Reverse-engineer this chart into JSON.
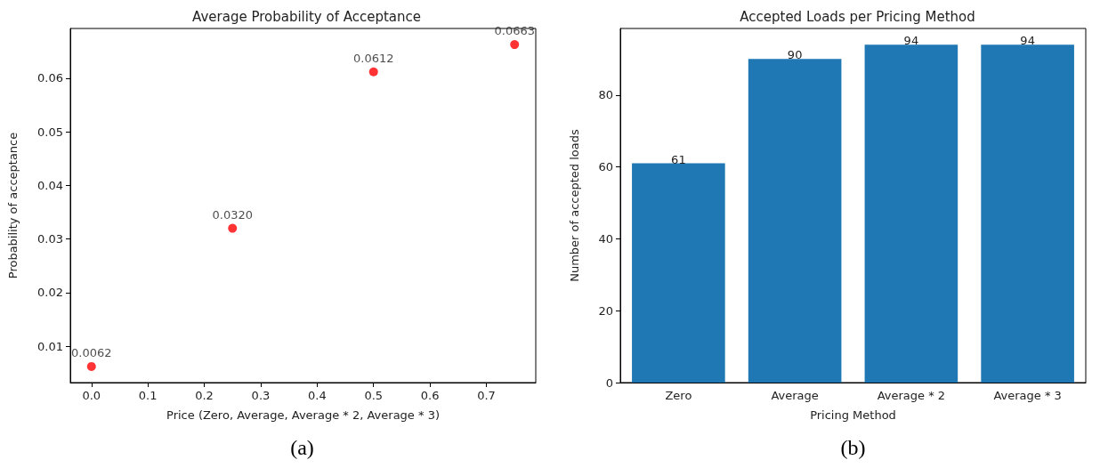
{
  "chart_data": [
    {
      "type": "scatter",
      "title": "Average Probability of Acceptance",
      "xlabel": "Price (Zero, Average, Average * 2, Average * 3)",
      "ylabel": "Probability of acceptance",
      "x": [
        0,
        0.25,
        0.5,
        0.75
      ],
      "values": [
        0.0062,
        0.032,
        0.0612,
        0.0663
      ],
      "value_labels": [
        "0.0062",
        "0.0320",
        "0.0612",
        "0.0663"
      ],
      "color": "#ff0000",
      "marker": "circle",
      "xlim": [
        -0.0375,
        0.7875
      ],
      "xticks": [
        {
          "value": 0,
          "label": "0.0"
        },
        0.1,
        0.2,
        0.3,
        0.4,
        0.5,
        0.6,
        0.7
      ],
      "ylim": [
        0.0032,
        0.0693
      ],
      "yticks": [
        0.01,
        0.02,
        0.03,
        0.04,
        0.05,
        0.06
      ],
      "annotations": [
        "(a)"
      ]
    },
    {
      "type": "bar",
      "title": "Accepted Loads per Pricing Method",
      "xlabel": "Pricing Method",
      "ylabel": "Number of accepted loads",
      "categories": [
        "Zero",
        "Average",
        "Average * 2",
        "Average * 3"
      ],
      "values": [
        61,
        90,
        94,
        94
      ],
      "color": "#1f77b4",
      "data_labels": true,
      "ylim": [
        0,
        98.5
      ],
      "yticks": [
        0,
        20,
        40,
        60,
        80
      ],
      "annotations": [
        "(b)"
      ]
    }
  ]
}
